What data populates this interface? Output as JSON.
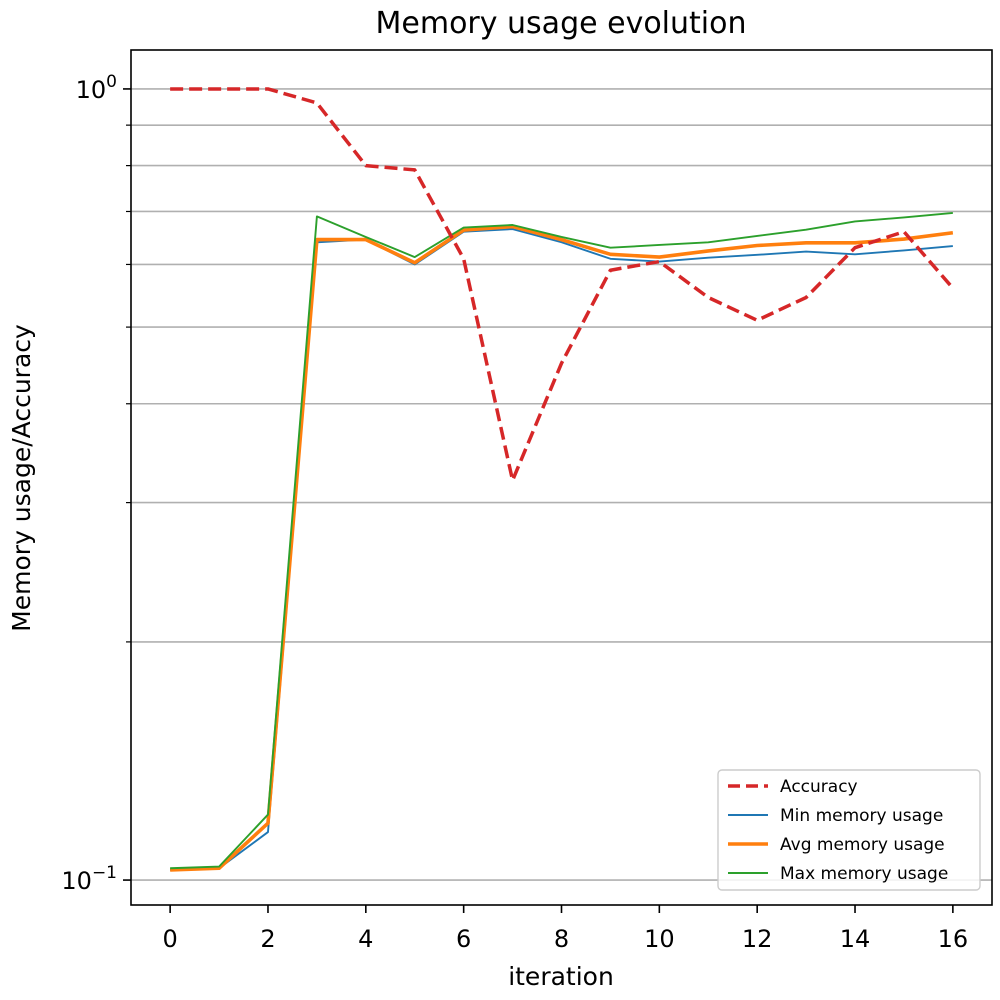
{
  "chart_data": {
    "type": "line",
    "title": "Memory usage evolution",
    "xlabel": "iteration",
    "ylabel": "Memory usage/Accuracy",
    "x": [
      0,
      1,
      2,
      3,
      4,
      5,
      6,
      7,
      8,
      9,
      10,
      11,
      12,
      13,
      14,
      15,
      16
    ],
    "x_ticks": [
      0,
      2,
      4,
      6,
      8,
      10,
      12,
      14,
      16
    ],
    "xlim": [
      -0.8,
      16.8
    ],
    "y_scale": "log",
    "ylim": [
      0.093,
      1.12
    ],
    "y_tick_labels": [
      {
        "value": 1.0,
        "base": "10",
        "exp": "0"
      },
      {
        "value": 0.1,
        "base": "10",
        "exp": "−1"
      }
    ],
    "grid": "y",
    "legend_position": "lower right",
    "series": [
      {
        "name": "Accuracy",
        "color": "#d62728",
        "style": "dashed",
        "values": [
          1.0,
          1.0,
          1.0,
          0.96,
          0.8,
          0.79,
          0.61,
          0.32,
          0.45,
          0.59,
          0.605,
          0.545,
          0.51,
          0.545,
          0.63,
          0.66,
          0.56
        ]
      },
      {
        "name": "Min memory usage",
        "color": "#1f77b4",
        "style": "solid",
        "values": [
          0.103,
          0.1035,
          0.115,
          0.64,
          0.645,
          0.6,
          0.66,
          0.665,
          0.64,
          0.61,
          0.605,
          0.612,
          0.617,
          0.623,
          0.618,
          0.625,
          0.633
        ]
      },
      {
        "name": "Avg memory usage",
        "color": "#ff7f0e",
        "style": "thick",
        "values": [
          0.103,
          0.1035,
          0.118,
          0.645,
          0.645,
          0.603,
          0.663,
          0.67,
          0.645,
          0.618,
          0.613,
          0.624,
          0.634,
          0.639,
          0.639,
          0.646,
          0.658
        ]
      },
      {
        "name": "Max memory usage",
        "color": "#2ca02c",
        "style": "solid",
        "values": [
          0.1035,
          0.104,
          0.121,
          0.69,
          0.65,
          0.613,
          0.668,
          0.673,
          0.65,
          0.63,
          0.635,
          0.64,
          0.652,
          0.664,
          0.68,
          0.688,
          0.697
        ]
      }
    ]
  }
}
